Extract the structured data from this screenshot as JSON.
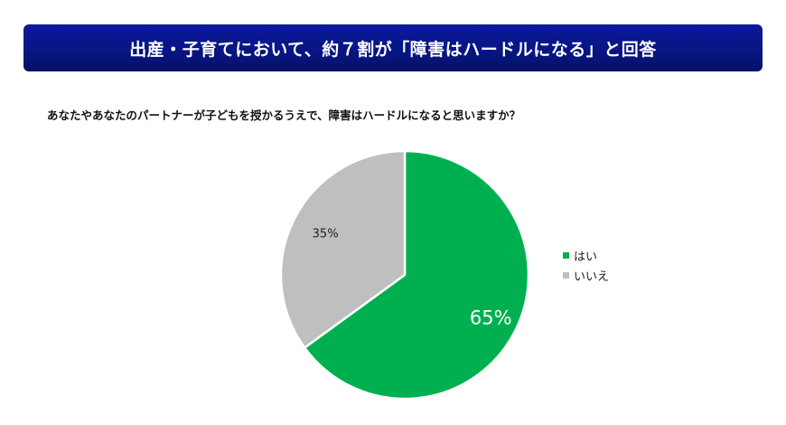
{
  "header": {
    "title": "出産・子育てにおいて、約７割が「障害はハードルになる」と回答"
  },
  "question": "あなたやあなたのパートナーが子どもを授かるうえで、障害はハードルになると思いますか？",
  "chart_data": {
    "type": "pie",
    "title": "",
    "legend_position": "right",
    "slices": [
      {
        "name": "はい",
        "value": 65,
        "label": "65%",
        "color": "#00b050"
      },
      {
        "name": "いいえ",
        "value": 35,
        "label": "35%",
        "color": "#bfbfbf"
      }
    ]
  }
}
